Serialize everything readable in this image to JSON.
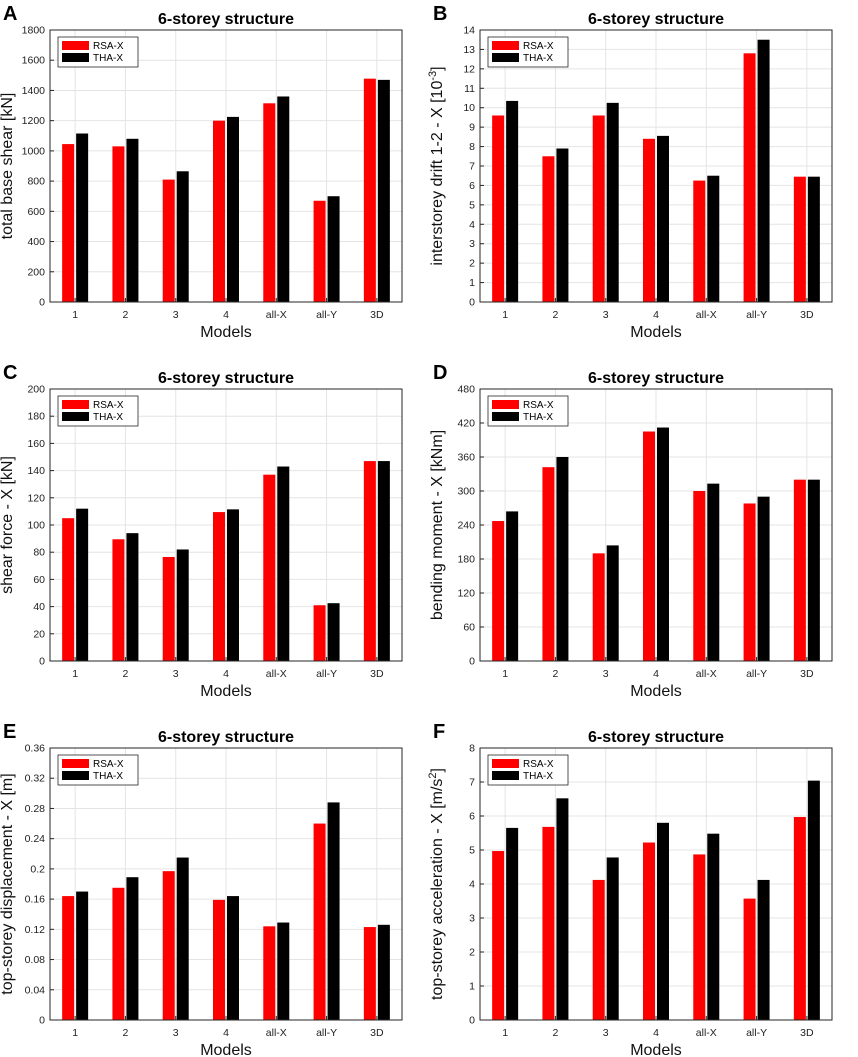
{
  "figure": {
    "colors": {
      "RSA-X": "#ff0000",
      "THA-X": "#000000",
      "grid": "#e4e4e4",
      "axis": "#262626"
    }
  },
  "chart_data": [
    {
      "panel": "A",
      "type": "bar",
      "title": "6-storey structure",
      "xlabel": "Models",
      "ylabel": "total base shear [kN]",
      "ylabel_superscript": "",
      "ylabel_after": "",
      "categories": [
        "1",
        "2",
        "3",
        "4",
        "all-X",
        "all-Y",
        "3D"
      ],
      "ylim": [
        0,
        1800
      ],
      "yticks": [
        0,
        200,
        400,
        600,
        800,
        1000,
        1200,
        1400,
        1600,
        1800
      ],
      "ytick_labels": [
        "0",
        "200",
        "400",
        "600",
        "800",
        "1000",
        "1200",
        "1400",
        "1600",
        "1800"
      ],
      "legend": "top-left",
      "series": [
        {
          "name": "RSA-X",
          "values": [
            1045,
            1030,
            810,
            1200,
            1315,
            670,
            1478
          ]
        },
        {
          "name": "THA-X",
          "values": [
            1115,
            1080,
            865,
            1225,
            1360,
            700,
            1470
          ]
        }
      ]
    },
    {
      "panel": "B",
      "type": "bar",
      "title": "6-storey structure",
      "xlabel": "Models",
      "ylabel": "interstorey drift 1-2 - X [10",
      "ylabel_superscript": "-3",
      "ylabel_after": "]",
      "categories": [
        "1",
        "2",
        "3",
        "4",
        "all-X",
        "all-Y",
        "3D"
      ],
      "ylim": [
        0,
        14
      ],
      "yticks": [
        0,
        1,
        2,
        3,
        4,
        5,
        6,
        7,
        8,
        9,
        10,
        11,
        12,
        13,
        14
      ],
      "ytick_labels": [
        "0",
        "1",
        "2",
        "3",
        "4",
        "5",
        "6",
        "7",
        "8",
        "9",
        "10",
        "11",
        "12",
        "13",
        "14"
      ],
      "legend": "top-left",
      "series": [
        {
          "name": "RSA-X",
          "values": [
            9.6,
            7.5,
            9.6,
            8.4,
            6.25,
            12.8,
            6.45
          ]
        },
        {
          "name": "THA-X",
          "values": [
            10.35,
            7.9,
            10.25,
            8.55,
            6.5,
            13.5,
            6.45
          ]
        }
      ]
    },
    {
      "panel": "C",
      "type": "bar",
      "title": "6-storey structure",
      "xlabel": "Models",
      "ylabel": "shear force - X [kN]",
      "ylabel_superscript": "",
      "ylabel_after": "",
      "categories": [
        "1",
        "2",
        "3",
        "4",
        "all-X",
        "all-Y",
        "3D"
      ],
      "ylim": [
        0,
        200
      ],
      "yticks": [
        0,
        20,
        40,
        60,
        80,
        100,
        120,
        140,
        160,
        180,
        200
      ],
      "ytick_labels": [
        "0",
        "20",
        "40",
        "60",
        "80",
        "100",
        "120",
        "140",
        "160",
        "180",
        "200"
      ],
      "legend": "top-left",
      "series": [
        {
          "name": "RSA-X",
          "values": [
            105,
            89.5,
            76.5,
            109.5,
            137,
            41,
            147
          ]
        },
        {
          "name": "THA-X",
          "values": [
            112,
            94,
            82,
            111.5,
            143,
            42.5,
            147
          ]
        }
      ]
    },
    {
      "panel": "D",
      "type": "bar",
      "title": "6-storey structure",
      "xlabel": "Models",
      "ylabel": "bending moment - X [kNm]",
      "ylabel_superscript": "",
      "ylabel_after": "",
      "categories": [
        "1",
        "2",
        "3",
        "4",
        "all-X",
        "all-Y",
        "3D"
      ],
      "ylim": [
        0,
        480
      ],
      "yticks": [
        0,
        60,
        120,
        180,
        240,
        300,
        360,
        420,
        480
      ],
      "ytick_labels": [
        "0",
        "60",
        "120",
        "180",
        "240",
        "300",
        "360",
        "420",
        "480"
      ],
      "legend": "top-left",
      "series": [
        {
          "name": "RSA-X",
          "values": [
            247,
            342,
            190,
            405,
            300,
            278,
            320
          ]
        },
        {
          "name": "THA-X",
          "values": [
            264,
            360,
            204,
            412,
            313,
            290,
            320
          ]
        }
      ]
    },
    {
      "panel": "E",
      "type": "bar",
      "title": "6-storey structure",
      "xlabel": "Models",
      "ylabel": "top-storey displacement - X [m]",
      "ylabel_superscript": "",
      "ylabel_after": "",
      "categories": [
        "1",
        "2",
        "3",
        "4",
        "all-X",
        "all-Y",
        "3D"
      ],
      "ylim": [
        0,
        0.36
      ],
      "yticks": [
        0,
        0.04,
        0.08,
        0.12,
        0.16,
        0.2,
        0.24,
        0.28,
        0.32,
        0.36
      ],
      "ytick_labels": [
        "0",
        "0.04",
        "0.08",
        "0.12",
        "0.16",
        "0.2",
        "0.24",
        "0.28",
        "0.32",
        "0.36"
      ],
      "legend": "top-left",
      "series": [
        {
          "name": "RSA-X",
          "values": [
            0.164,
            0.175,
            0.197,
            0.159,
            0.124,
            0.26,
            0.123
          ]
        },
        {
          "name": "THA-X",
          "values": [
            0.17,
            0.189,
            0.215,
            0.164,
            0.129,
            0.288,
            0.126
          ]
        }
      ]
    },
    {
      "panel": "F",
      "type": "bar",
      "title": "6-storey structure",
      "xlabel": "Models",
      "ylabel": "top-storey acceleration - X [m/s",
      "ylabel_superscript": "2",
      "ylabel_after": "]",
      "categories": [
        "1",
        "2",
        "3",
        "4",
        "all-X",
        "all-Y",
        "3D"
      ],
      "ylim": [
        0,
        8
      ],
      "yticks": [
        0,
        1,
        2,
        3,
        4,
        5,
        6,
        7,
        8
      ],
      "ytick_labels": [
        "0",
        "1",
        "2",
        "3",
        "4",
        "5",
        "6",
        "7",
        "8"
      ],
      "legend": "top-left",
      "series": [
        {
          "name": "RSA-X",
          "values": [
            4.97,
            5.68,
            4.12,
            5.22,
            4.87,
            3.57,
            5.97
          ]
        },
        {
          "name": "THA-X",
          "values": [
            5.65,
            6.52,
            4.78,
            5.8,
            5.48,
            4.12,
            7.04
          ]
        }
      ]
    }
  ]
}
